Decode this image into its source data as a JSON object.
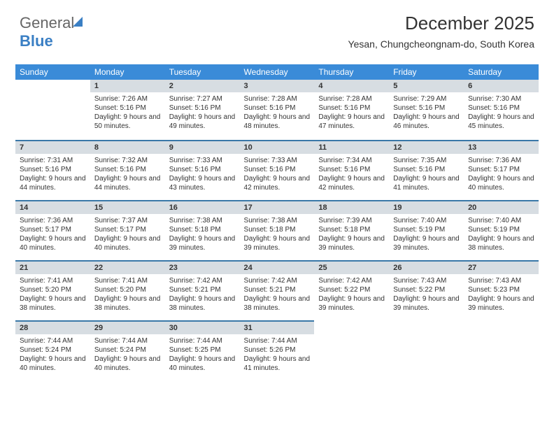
{
  "brand": {
    "part1": "General",
    "part2": "Blue"
  },
  "title": "December 2025",
  "subtitle": "Yesan, Chungcheongnam-do, South Korea",
  "colors": {
    "header_bg": "#3a8bd8",
    "header_text": "#ffffff",
    "daynum_bg": "#d7dde2",
    "row_border": "#3a78a8",
    "brand_blue": "#3a7fc4",
    "text": "#333333",
    "background": "#ffffff"
  },
  "dayHeaders": [
    "Sunday",
    "Monday",
    "Tuesday",
    "Wednesday",
    "Thursday",
    "Friday",
    "Saturday"
  ],
  "weeks": [
    [
      null,
      {
        "n": "1",
        "sr": "Sunrise: 7:26 AM",
        "ss": "Sunset: 5:16 PM",
        "dl": "Daylight: 9 hours and 50 minutes."
      },
      {
        "n": "2",
        "sr": "Sunrise: 7:27 AM",
        "ss": "Sunset: 5:16 PM",
        "dl": "Daylight: 9 hours and 49 minutes."
      },
      {
        "n": "3",
        "sr": "Sunrise: 7:28 AM",
        "ss": "Sunset: 5:16 PM",
        "dl": "Daylight: 9 hours and 48 minutes."
      },
      {
        "n": "4",
        "sr": "Sunrise: 7:28 AM",
        "ss": "Sunset: 5:16 PM",
        "dl": "Daylight: 9 hours and 47 minutes."
      },
      {
        "n": "5",
        "sr": "Sunrise: 7:29 AM",
        "ss": "Sunset: 5:16 PM",
        "dl": "Daylight: 9 hours and 46 minutes."
      },
      {
        "n": "6",
        "sr": "Sunrise: 7:30 AM",
        "ss": "Sunset: 5:16 PM",
        "dl": "Daylight: 9 hours and 45 minutes."
      }
    ],
    [
      {
        "n": "7",
        "sr": "Sunrise: 7:31 AM",
        "ss": "Sunset: 5:16 PM",
        "dl": "Daylight: 9 hours and 44 minutes."
      },
      {
        "n": "8",
        "sr": "Sunrise: 7:32 AM",
        "ss": "Sunset: 5:16 PM",
        "dl": "Daylight: 9 hours and 44 minutes."
      },
      {
        "n": "9",
        "sr": "Sunrise: 7:33 AM",
        "ss": "Sunset: 5:16 PM",
        "dl": "Daylight: 9 hours and 43 minutes."
      },
      {
        "n": "10",
        "sr": "Sunrise: 7:33 AM",
        "ss": "Sunset: 5:16 PM",
        "dl": "Daylight: 9 hours and 42 minutes."
      },
      {
        "n": "11",
        "sr": "Sunrise: 7:34 AM",
        "ss": "Sunset: 5:16 PM",
        "dl": "Daylight: 9 hours and 42 minutes."
      },
      {
        "n": "12",
        "sr": "Sunrise: 7:35 AM",
        "ss": "Sunset: 5:16 PM",
        "dl": "Daylight: 9 hours and 41 minutes."
      },
      {
        "n": "13",
        "sr": "Sunrise: 7:36 AM",
        "ss": "Sunset: 5:17 PM",
        "dl": "Daylight: 9 hours and 40 minutes."
      }
    ],
    [
      {
        "n": "14",
        "sr": "Sunrise: 7:36 AM",
        "ss": "Sunset: 5:17 PM",
        "dl": "Daylight: 9 hours and 40 minutes."
      },
      {
        "n": "15",
        "sr": "Sunrise: 7:37 AM",
        "ss": "Sunset: 5:17 PM",
        "dl": "Daylight: 9 hours and 40 minutes."
      },
      {
        "n": "16",
        "sr": "Sunrise: 7:38 AM",
        "ss": "Sunset: 5:18 PM",
        "dl": "Daylight: 9 hours and 39 minutes."
      },
      {
        "n": "17",
        "sr": "Sunrise: 7:38 AM",
        "ss": "Sunset: 5:18 PM",
        "dl": "Daylight: 9 hours and 39 minutes."
      },
      {
        "n": "18",
        "sr": "Sunrise: 7:39 AM",
        "ss": "Sunset: 5:18 PM",
        "dl": "Daylight: 9 hours and 39 minutes."
      },
      {
        "n": "19",
        "sr": "Sunrise: 7:40 AM",
        "ss": "Sunset: 5:19 PM",
        "dl": "Daylight: 9 hours and 39 minutes."
      },
      {
        "n": "20",
        "sr": "Sunrise: 7:40 AM",
        "ss": "Sunset: 5:19 PM",
        "dl": "Daylight: 9 hours and 38 minutes."
      }
    ],
    [
      {
        "n": "21",
        "sr": "Sunrise: 7:41 AM",
        "ss": "Sunset: 5:20 PM",
        "dl": "Daylight: 9 hours and 38 minutes."
      },
      {
        "n": "22",
        "sr": "Sunrise: 7:41 AM",
        "ss": "Sunset: 5:20 PM",
        "dl": "Daylight: 9 hours and 38 minutes."
      },
      {
        "n": "23",
        "sr": "Sunrise: 7:42 AM",
        "ss": "Sunset: 5:21 PM",
        "dl": "Daylight: 9 hours and 38 minutes."
      },
      {
        "n": "24",
        "sr": "Sunrise: 7:42 AM",
        "ss": "Sunset: 5:21 PM",
        "dl": "Daylight: 9 hours and 38 minutes."
      },
      {
        "n": "25",
        "sr": "Sunrise: 7:42 AM",
        "ss": "Sunset: 5:22 PM",
        "dl": "Daylight: 9 hours and 39 minutes."
      },
      {
        "n": "26",
        "sr": "Sunrise: 7:43 AM",
        "ss": "Sunset: 5:22 PM",
        "dl": "Daylight: 9 hours and 39 minutes."
      },
      {
        "n": "27",
        "sr": "Sunrise: 7:43 AM",
        "ss": "Sunset: 5:23 PM",
        "dl": "Daylight: 9 hours and 39 minutes."
      }
    ],
    [
      {
        "n": "28",
        "sr": "Sunrise: 7:44 AM",
        "ss": "Sunset: 5:24 PM",
        "dl": "Daylight: 9 hours and 40 minutes."
      },
      {
        "n": "29",
        "sr": "Sunrise: 7:44 AM",
        "ss": "Sunset: 5:24 PM",
        "dl": "Daylight: 9 hours and 40 minutes."
      },
      {
        "n": "30",
        "sr": "Sunrise: 7:44 AM",
        "ss": "Sunset: 5:25 PM",
        "dl": "Daylight: 9 hours and 40 minutes."
      },
      {
        "n": "31",
        "sr": "Sunrise: 7:44 AM",
        "ss": "Sunset: 5:26 PM",
        "dl": "Daylight: 9 hours and 41 minutes."
      },
      null,
      null,
      null
    ]
  ]
}
